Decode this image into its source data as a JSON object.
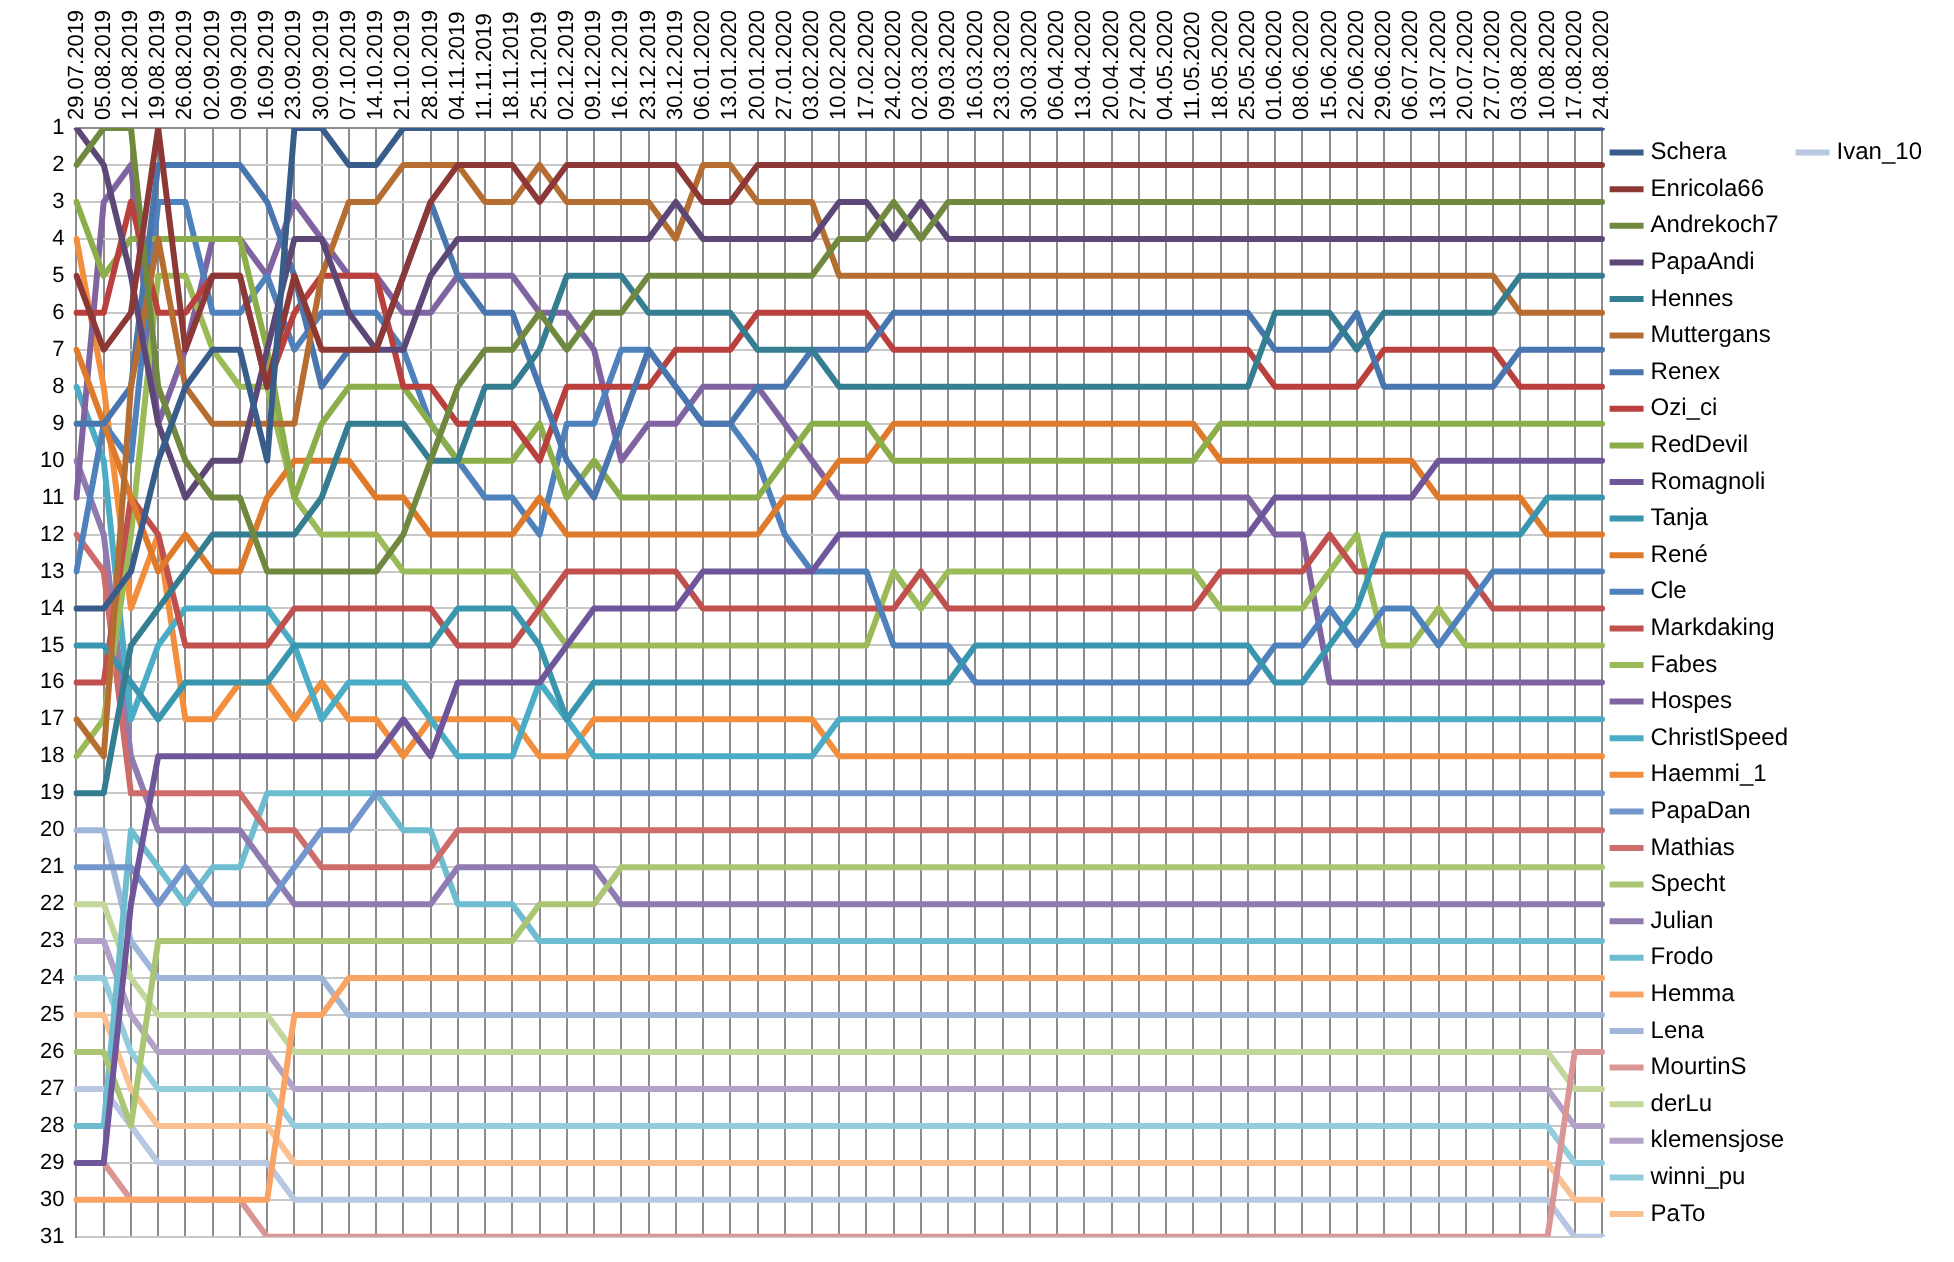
{
  "chart_data": {
    "type": "line",
    "categories": [
      "29.07.2019",
      "05.08.2019",
      "12.08.2019",
      "19.08.2019",
      "26.08.2019",
      "02.09.2019",
      "09.09.2019",
      "16.09.2019",
      "23.09.2019",
      "30.09.2019",
      "07.10.2019",
      "14.10.2019",
      "21.10.2019",
      "28.10.2019",
      "04.11.2019",
      "11.11.2019",
      "18.11.2019",
      "25.11.2019",
      "02.12.2019",
      "09.12.2019",
      "16.12.2019",
      "23.12.2019",
      "30.12.2019",
      "06.01.2020",
      "13.01.2020",
      "20.01.2020",
      "27.01.2020",
      "03.02.2020",
      "10.02.2020",
      "17.02.2020",
      "24.02.2020",
      "02.03.2020",
      "09.03.2020",
      "16.03.2020",
      "23.03.2020",
      "30.03.2020",
      "06.04.2020",
      "13.04.2020",
      "20.04.2020",
      "27.04.2020",
      "04.05.2020",
      "11.05.2020",
      "18.05.2020",
      "25.05.2020",
      "01.06.2020",
      "08.06.2020",
      "15.06.2020",
      "22.06.2020",
      "29.06.2020",
      "06.07.2020",
      "13.07.2020",
      "20.07.2020",
      "27.07.2020",
      "03.08.2020",
      "10.08.2020",
      "17.08.2020",
      "24.08.2020"
    ],
    "ylim": [
      31,
      1
    ],
    "yticks": [
      1,
      2,
      3,
      4,
      5,
      6,
      7,
      8,
      9,
      10,
      11,
      12,
      13,
      14,
      15,
      16,
      17,
      18,
      19,
      20,
      21,
      22,
      23,
      24,
      25,
      26,
      27,
      28,
      29,
      30,
      31
    ],
    "grid": true,
    "legend": "right",
    "marker": "none",
    "line_style": "solid",
    "series": [
      {
        "name": "Schera",
        "color": "#385d8a",
        "values": [
          14,
          14,
          13,
          10,
          8,
          7,
          7,
          10,
          1,
          1,
          2,
          2,
          1,
          1,
          1,
          1,
          1,
          1,
          1,
          1,
          1,
          1,
          1,
          1,
          1,
          1,
          1,
          1,
          1,
          1,
          1,
          1,
          1,
          1,
          1,
          1,
          1,
          1,
          1,
          1,
          1,
          1,
          1,
          1,
          1,
          1,
          1,
          1,
          1,
          1,
          1,
          1,
          1,
          1,
          1,
          1,
          1
        ]
      },
      {
        "name": "Enricola66",
        "color": "#8c3836",
        "values": [
          5,
          7,
          6,
          1,
          7,
          5,
          5,
          8,
          5,
          7,
          7,
          7,
          5,
          3,
          2,
          2,
          2,
          3,
          2,
          2,
          2,
          2,
          2,
          3,
          3,
          2,
          2,
          2,
          2,
          2,
          2,
          2,
          2,
          2,
          2,
          2,
          2,
          2,
          2,
          2,
          2,
          2,
          2,
          2,
          2,
          2,
          2,
          2,
          2,
          2,
          2,
          2,
          2,
          2,
          2,
          2,
          2
        ]
      },
      {
        "name": "Andrekoch7",
        "color": "#71893f",
        "values": [
          2,
          1,
          1,
          8,
          10,
          11,
          11,
          13,
          13,
          13,
          13,
          13,
          12,
          10,
          8,
          7,
          7,
          6,
          7,
          6,
          6,
          5,
          5,
          5,
          5,
          5,
          5,
          5,
          4,
          4,
          3,
          4,
          3,
          3,
          3,
          3,
          3,
          3,
          3,
          3,
          3,
          3,
          3,
          3,
          3,
          3,
          3,
          3,
          3,
          3,
          3,
          3,
          3,
          3,
          3,
          3,
          3
        ]
      },
      {
        "name": "PapaAndi",
        "color": "#5c4776",
        "values": [
          1,
          2,
          5,
          9,
          11,
          10,
          10,
          7,
          4,
          4,
          6,
          7,
          7,
          5,
          4,
          4,
          4,
          4,
          4,
          4,
          4,
          4,
          3,
          4,
          4,
          4,
          4,
          4,
          3,
          3,
          4,
          3,
          4,
          4,
          4,
          4,
          4,
          4,
          4,
          4,
          4,
          4,
          4,
          4,
          4,
          4,
          4,
          4,
          4,
          4,
          4,
          4,
          4,
          4,
          4,
          4,
          4
        ]
      },
      {
        "name": "Hennes",
        "color": "#357d91",
        "values": [
          19,
          19,
          15,
          14,
          13,
          12,
          12,
          12,
          12,
          11,
          9,
          9,
          9,
          10,
          10,
          8,
          8,
          7,
          5,
          5,
          5,
          6,
          6,
          6,
          6,
          7,
          7,
          7,
          8,
          8,
          8,
          8,
          8,
          8,
          8,
          8,
          8,
          8,
          8,
          8,
          8,
          8,
          8,
          8,
          6,
          6,
          6,
          7,
          6,
          6,
          6,
          6,
          6,
          5,
          5,
          5,
          5
        ]
      },
      {
        "name": "Muttergans",
        "color": "#b66d31",
        "values": [
          17,
          18,
          8,
          4,
          8,
          9,
          9,
          9,
          9,
          5,
          3,
          3,
          2,
          2,
          2,
          3,
          3,
          2,
          3,
          3,
          3,
          3,
          4,
          2,
          2,
          3,
          3,
          3,
          5,
          5,
          5,
          5,
          5,
          5,
          5,
          5,
          5,
          5,
          5,
          5,
          5,
          5,
          5,
          5,
          5,
          5,
          5,
          5,
          5,
          5,
          5,
          5,
          5,
          6,
          6,
          6,
          6
        ]
      },
      {
        "name": "Renex",
        "color": "#4a76b0",
        "values": [
          9,
          9,
          8,
          2,
          2,
          2,
          2,
          3,
          5,
          8,
          7,
          7,
          5,
          3,
          5,
          6,
          6,
          8,
          10,
          11,
          9,
          7,
          8,
          9,
          9,
          8,
          8,
          7,
          7,
          7,
          6,
          6,
          6,
          6,
          6,
          6,
          6,
          6,
          6,
          6,
          6,
          6,
          6,
          6,
          7,
          7,
          7,
          6,
          8,
          8,
          8,
          8,
          8,
          7,
          7,
          7,
          7
        ]
      },
      {
        "name": "Ozi_ci",
        "color": "#b9403d",
        "values": [
          6,
          6,
          3,
          6,
          6,
          5,
          5,
          8,
          6,
          5,
          5,
          5,
          8,
          8,
          9,
          9,
          9,
          10,
          8,
          8,
          8,
          8,
          7,
          7,
          7,
          6,
          6,
          6,
          6,
          6,
          7,
          7,
          7,
          7,
          7,
          7,
          7,
          7,
          7,
          7,
          7,
          7,
          7,
          7,
          8,
          8,
          8,
          8,
          7,
          7,
          7,
          7,
          7,
          8,
          8,
          8,
          8
        ]
      },
      {
        "name": "RedDevil",
        "color": "#8cae4a",
        "values": [
          3,
          5,
          4,
          4,
          4,
          4,
          4,
          7,
          11,
          9,
          8,
          8,
          8,
          9,
          10,
          10,
          10,
          9,
          11,
          10,
          11,
          11,
          11,
          11,
          11,
          11,
          10,
          9,
          9,
          9,
          10,
          10,
          10,
          10,
          10,
          10,
          10,
          10,
          10,
          10,
          10,
          10,
          9,
          9,
          9,
          9,
          9,
          9,
          9,
          9,
          9,
          9,
          9,
          9,
          9,
          9,
          9
        ]
      },
      {
        "name": "Romagnoli",
        "color": "#6f569a",
        "values": [
          29,
          29,
          22,
          18,
          18,
          18,
          18,
          18,
          18,
          18,
          18,
          18,
          17,
          18,
          16,
          16,
          16,
          16,
          15,
          14,
          14,
          14,
          14,
          13,
          13,
          13,
          13,
          13,
          12,
          12,
          12,
          12,
          12,
          12,
          12,
          12,
          12,
          12,
          12,
          12,
          12,
          12,
          12,
          12,
          11,
          11,
          11,
          11,
          11,
          11,
          10,
          10,
          10,
          10,
          10,
          10,
          10
        ]
      },
      {
        "name": "Tanja",
        "color": "#3996ae",
        "values": [
          15,
          15,
          16,
          17,
          16,
          16,
          16,
          16,
          15,
          15,
          15,
          15,
          15,
          15,
          14,
          14,
          14,
          15,
          17,
          16,
          16,
          16,
          16,
          16,
          16,
          16,
          16,
          16,
          16,
          16,
          16,
          16,
          16,
          15,
          15,
          15,
          15,
          15,
          15,
          15,
          15,
          15,
          15,
          15,
          16,
          16,
          15,
          14,
          12,
          12,
          12,
          12,
          12,
          12,
          11,
          11,
          11
        ]
      },
      {
        "name": "René",
        "color": "#df7a2b",
        "values": [
          7,
          9,
          11,
          13,
          12,
          13,
          13,
          11,
          10,
          10,
          10,
          11,
          11,
          12,
          12,
          12,
          12,
          11,
          12,
          12,
          12,
          12,
          12,
          12,
          12,
          12,
          11,
          11,
          10,
          10,
          9,
          9,
          9,
          9,
          9,
          9,
          9,
          9,
          9,
          9,
          9,
          9,
          10,
          10,
          10,
          10,
          10,
          10,
          10,
          10,
          11,
          11,
          11,
          11,
          12,
          12,
          12
        ]
      },
      {
        "name": "Cle",
        "color": "#4f81bd",
        "values": [
          13,
          9,
          10,
          3,
          3,
          6,
          6,
          5,
          7,
          6,
          6,
          6,
          7,
          9,
          10,
          11,
          11,
          12,
          9,
          9,
          7,
          7,
          8,
          9,
          9,
          10,
          12,
          13,
          13,
          13,
          15,
          15,
          15,
          16,
          16,
          16,
          16,
          16,
          16,
          16,
          16,
          16,
          16,
          16,
          15,
          15,
          14,
          15,
          14,
          14,
          15,
          14,
          13,
          13,
          13,
          13,
          13
        ]
      },
      {
        "name": "Markdaking",
        "color": "#c0504d",
        "values": [
          16,
          16,
          11,
          12,
          15,
          15,
          15,
          15,
          14,
          14,
          14,
          14,
          14,
          14,
          15,
          15,
          15,
          14,
          13,
          13,
          13,
          13,
          13,
          14,
          14,
          14,
          14,
          14,
          14,
          14,
          14,
          13,
          14,
          14,
          14,
          14,
          14,
          14,
          14,
          14,
          14,
          14,
          13,
          13,
          13,
          13,
          12,
          13,
          13,
          13,
          13,
          13,
          14,
          14,
          14,
          14,
          14
        ]
      },
      {
        "name": "Fabes",
        "color": "#9bbb59",
        "values": [
          18,
          17,
          12,
          5,
          5,
          7,
          8,
          8,
          11,
          12,
          12,
          12,
          13,
          13,
          13,
          13,
          13,
          14,
          15,
          15,
          15,
          15,
          15,
          15,
          15,
          15,
          15,
          15,
          15,
          15,
          13,
          14,
          13,
          13,
          13,
          13,
          13,
          13,
          13,
          13,
          13,
          13,
          14,
          14,
          14,
          14,
          13,
          12,
          15,
          15,
          14,
          15,
          15,
          15,
          15,
          15,
          15
        ]
      },
      {
        "name": "Hospes",
        "color": "#8064a2",
        "values": [
          11,
          3,
          2,
          9,
          7,
          4,
          4,
          5,
          3,
          4,
          5,
          5,
          6,
          6,
          5,
          5,
          5,
          6,
          6,
          7,
          10,
          9,
          9,
          8,
          8,
          8,
          9,
          10,
          11,
          11,
          11,
          11,
          11,
          11,
          11,
          11,
          11,
          11,
          11,
          11,
          11,
          11,
          11,
          11,
          12,
          12,
          16,
          16,
          16,
          16,
          16,
          16,
          16,
          16,
          16,
          16,
          16
        ]
      },
      {
        "name": "ChristlSpeed",
        "color": "#4bacc6",
        "values": [
          8,
          10,
          17,
          15,
          14,
          14,
          14,
          14,
          15,
          17,
          16,
          16,
          16,
          17,
          18,
          18,
          18,
          16,
          17,
          18,
          18,
          18,
          18,
          18,
          18,
          18,
          18,
          18,
          17,
          17,
          17,
          17,
          17,
          17,
          17,
          17,
          17,
          17,
          17,
          17,
          17,
          17,
          17,
          17,
          17,
          17,
          17,
          17,
          17,
          17,
          17,
          17,
          17,
          17,
          17,
          17,
          17
        ]
      },
      {
        "name": "Haemmi_1",
        "color": "#f28e3c",
        "values": [
          4,
          8,
          14,
          12,
          17,
          17,
          16,
          16,
          17,
          16,
          17,
          17,
          18,
          17,
          17,
          17,
          17,
          18,
          18,
          17,
          17,
          17,
          17,
          17,
          17,
          17,
          17,
          17,
          18,
          18,
          18,
          18,
          18,
          18,
          18,
          18,
          18,
          18,
          18,
          18,
          18,
          18,
          18,
          18,
          18,
          18,
          18,
          18,
          18,
          18,
          18,
          18,
          18,
          18,
          18,
          18,
          18
        ]
      },
      {
        "name": "PapaDan",
        "color": "#7397cd",
        "values": [
          21,
          21,
          21,
          22,
          21,
          22,
          22,
          22,
          21,
          20,
          20,
          19,
          19,
          19,
          19,
          19,
          19,
          19,
          19,
          19,
          19,
          19,
          19,
          19,
          19,
          19,
          19,
          19,
          19,
          19,
          19,
          19,
          19,
          19,
          19,
          19,
          19,
          19,
          19,
          19,
          19,
          19,
          19,
          19,
          19,
          19,
          19,
          19,
          19,
          19,
          19,
          19,
          19,
          19,
          19,
          19,
          19
        ]
      },
      {
        "name": "Mathias",
        "color": "#cd6c6a",
        "values": [
          12,
          13,
          19,
          19,
          19,
          19,
          19,
          20,
          20,
          21,
          21,
          21,
          21,
          21,
          20,
          20,
          20,
          20,
          20,
          20,
          20,
          20,
          20,
          20,
          20,
          20,
          20,
          20,
          20,
          20,
          20,
          20,
          20,
          20,
          20,
          20,
          20,
          20,
          20,
          20,
          20,
          20,
          20,
          20,
          20,
          20,
          20,
          20,
          20,
          20,
          20,
          20,
          20,
          20,
          20,
          20,
          20
        ]
      },
      {
        "name": "Specht",
        "color": "#aac674",
        "values": [
          26,
          26,
          28,
          23,
          23,
          23,
          23,
          23,
          23,
          23,
          23,
          23,
          23,
          23,
          23,
          23,
          23,
          22,
          22,
          22,
          21,
          21,
          21,
          21,
          21,
          21,
          21,
          21,
          21,
          21,
          21,
          21,
          21,
          21,
          21,
          21,
          21,
          21,
          21,
          21,
          21,
          21,
          21,
          21,
          21,
          21,
          21,
          21,
          21,
          21,
          21,
          21,
          21,
          21,
          21,
          21,
          21
        ]
      },
      {
        "name": "Julian",
        "color": "#8f7bb0",
        "values": [
          10,
          12,
          18,
          20,
          20,
          20,
          20,
          21,
          22,
          22,
          22,
          22,
          22,
          22,
          21,
          21,
          21,
          21,
          21,
          21,
          22,
          22,
          22,
          22,
          22,
          22,
          22,
          22,
          22,
          22,
          22,
          22,
          22,
          22,
          22,
          22,
          22,
          22,
          22,
          22,
          22,
          22,
          22,
          22,
          22,
          22,
          22,
          22,
          22,
          22,
          22,
          22,
          22,
          22,
          22,
          22,
          22
        ]
      },
      {
        "name": "Frodo",
        "color": "#6dbcd0",
        "values": [
          28,
          28,
          20,
          21,
          22,
          21,
          21,
          19,
          19,
          19,
          19,
          19,
          20,
          20,
          22,
          22,
          22,
          23,
          23,
          23,
          23,
          23,
          23,
          23,
          23,
          23,
          23,
          23,
          23,
          23,
          23,
          23,
          23,
          23,
          23,
          23,
          23,
          23,
          23,
          23,
          23,
          23,
          23,
          23,
          23,
          23,
          23,
          23,
          23,
          23,
          23,
          23,
          23,
          23,
          23,
          23,
          23
        ]
      },
      {
        "name": "Hemma",
        "color": "#f9a364",
        "values": [
          30,
          30,
          30,
          30,
          30,
          30,
          30,
          30,
          25,
          25,
          24,
          24,
          24,
          24,
          24,
          24,
          24,
          24,
          24,
          24,
          24,
          24,
          24,
          24,
          24,
          24,
          24,
          24,
          24,
          24,
          24,
          24,
          24,
          24,
          24,
          24,
          24,
          24,
          24,
          24,
          24,
          24,
          24,
          24,
          24,
          24,
          24,
          24,
          24,
          24,
          24,
          24,
          24,
          24,
          24,
          24,
          24
        ]
      },
      {
        "name": "Lena",
        "color": "#9fb6d9",
        "values": [
          20,
          20,
          23,
          24,
          24,
          24,
          24,
          24,
          24,
          24,
          25,
          25,
          25,
          25,
          25,
          25,
          25,
          25,
          25,
          25,
          25,
          25,
          25,
          25,
          25,
          25,
          25,
          25,
          25,
          25,
          25,
          25,
          25,
          25,
          25,
          25,
          25,
          25,
          25,
          25,
          25,
          25,
          25,
          25,
          25,
          25,
          25,
          25,
          25,
          25,
          25,
          25,
          25,
          25,
          25,
          25,
          25
        ]
      },
      {
        "name": "MourtinS",
        "color": "#d99694",
        "values": [
          29,
          29,
          30,
          30,
          30,
          30,
          30,
          31,
          31,
          31,
          31,
          31,
          31,
          31,
          31,
          31,
          31,
          31,
          31,
          31,
          31,
          31,
          31,
          31,
          31,
          31,
          31,
          31,
          31,
          31,
          31,
          31,
          31,
          31,
          31,
          31,
          31,
          31,
          31,
          31,
          31,
          31,
          31,
          31,
          31,
          31,
          31,
          31,
          31,
          31,
          31,
          31,
          31,
          31,
          31,
          26,
          26
        ]
      },
      {
        "name": "derLu",
        "color": "#c3d69b",
        "values": [
          22,
          22,
          24,
          25,
          25,
          25,
          25,
          25,
          26,
          26,
          26,
          26,
          26,
          26,
          26,
          26,
          26,
          26,
          26,
          26,
          26,
          26,
          26,
          26,
          26,
          26,
          26,
          26,
          26,
          26,
          26,
          26,
          26,
          26,
          26,
          26,
          26,
          26,
          26,
          26,
          26,
          26,
          26,
          26,
          26,
          26,
          26,
          26,
          26,
          26,
          26,
          26,
          26,
          26,
          26,
          27,
          27
        ]
      },
      {
        "name": "klemensjose",
        "color": "#b3a2c7",
        "values": [
          23,
          23,
          25,
          26,
          26,
          26,
          26,
          26,
          27,
          27,
          27,
          27,
          27,
          27,
          27,
          27,
          27,
          27,
          27,
          27,
          27,
          27,
          27,
          27,
          27,
          27,
          27,
          27,
          27,
          27,
          27,
          27,
          27,
          27,
          27,
          27,
          27,
          27,
          27,
          27,
          27,
          27,
          27,
          27,
          27,
          27,
          27,
          27,
          27,
          27,
          27,
          27,
          27,
          27,
          27,
          28,
          28
        ]
      },
      {
        "name": "winni_pu",
        "color": "#93cddd",
        "values": [
          24,
          24,
          26,
          27,
          27,
          27,
          27,
          27,
          28,
          28,
          28,
          28,
          28,
          28,
          28,
          28,
          28,
          28,
          28,
          28,
          28,
          28,
          28,
          28,
          28,
          28,
          28,
          28,
          28,
          28,
          28,
          28,
          28,
          28,
          28,
          28,
          28,
          28,
          28,
          28,
          28,
          28,
          28,
          28,
          28,
          28,
          28,
          28,
          28,
          28,
          28,
          28,
          28,
          28,
          28,
          29,
          29
        ]
      },
      {
        "name": "PaTo",
        "color": "#fac090",
        "values": [
          25,
          25,
          27,
          28,
          28,
          28,
          28,
          28,
          29,
          29,
          29,
          29,
          29,
          29,
          29,
          29,
          29,
          29,
          29,
          29,
          29,
          29,
          29,
          29,
          29,
          29,
          29,
          29,
          29,
          29,
          29,
          29,
          29,
          29,
          29,
          29,
          29,
          29,
          29,
          29,
          29,
          29,
          29,
          29,
          29,
          29,
          29,
          29,
          29,
          29,
          29,
          29,
          29,
          29,
          29,
          30,
          30
        ]
      },
      {
        "name": "Ivan_10",
        "color": "#b9c8e2",
        "values": [
          27,
          27,
          28,
          29,
          29,
          29,
          29,
          29,
          30,
          30,
          30,
          30,
          30,
          30,
          30,
          30,
          30,
          30,
          30,
          30,
          30,
          30,
          30,
          30,
          30,
          30,
          30,
          30,
          30,
          30,
          30,
          30,
          30,
          30,
          30,
          30,
          30,
          30,
          30,
          30,
          30,
          30,
          30,
          30,
          30,
          30,
          30,
          30,
          30,
          30,
          30,
          30,
          30,
          30,
          30,
          31,
          31
        ]
      }
    ]
  }
}
